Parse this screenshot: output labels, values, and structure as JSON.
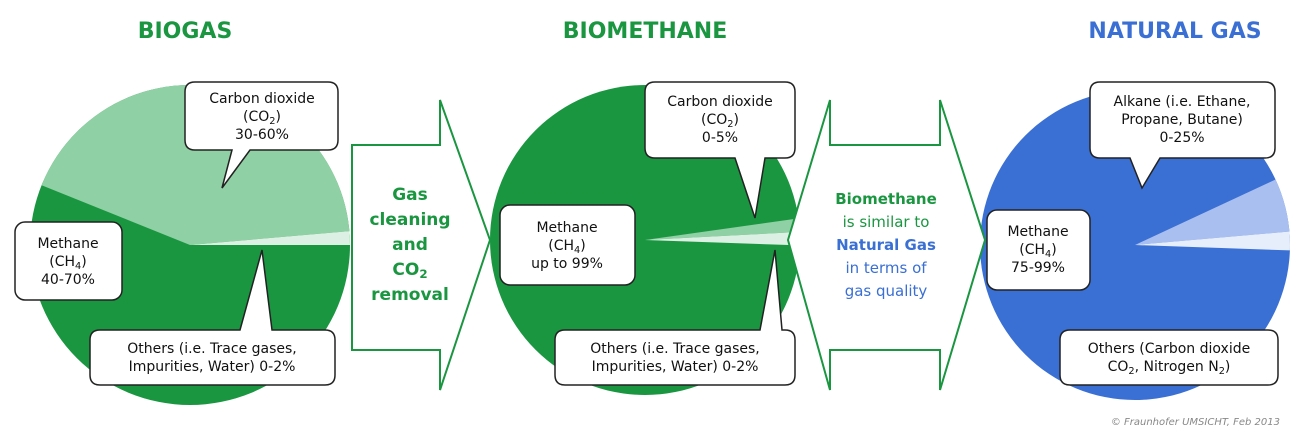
{
  "sections": [
    {
      "title": "BIOGAS",
      "callouts": [
        {
          "lines": [
            [
              "Carbon dioxide"
            ],
            [
              "(CO",
              "2",
              ")"
            ],
            [
              "30-60%"
            ]
          ]
        },
        {
          "lines": [
            [
              "Methane"
            ],
            [
              "(CH",
              "4",
              ")"
            ],
            [
              "40-70%"
            ]
          ]
        },
        {
          "lines": [
            [
              "Others (i.e. Trace gases,"
            ],
            [
              "Impurities, Water) 0-2%"
            ]
          ]
        }
      ]
    },
    {
      "title": "BIOMETHANE",
      "callouts": [
        {
          "lines": [
            [
              "Carbon dioxide"
            ],
            [
              "(CO",
              "2",
              ")"
            ],
            [
              "0-5%"
            ]
          ]
        },
        {
          "lines": [
            [
              "Methane"
            ],
            [
              "(CH",
              "4",
              ")"
            ],
            [
              "up to 99%"
            ]
          ]
        },
        {
          "lines": [
            [
              "Others (i.e. Trace gases,"
            ],
            [
              "Impurities, Water) 0-2%"
            ]
          ]
        }
      ]
    },
    {
      "title": "NATURAL GAS",
      "callouts": [
        {
          "lines": [
            [
              "Alkane (i.e. Ethane,"
            ],
            [
              "Propane, Butane)"
            ],
            [
              "0-25%"
            ]
          ]
        },
        {
          "lines": [
            [
              "Methane"
            ],
            [
              "(CH",
              "4",
              ")"
            ],
            [
              "75-99%"
            ]
          ]
        },
        {
          "lines": [
            [
              "Others (Carbon dioxide"
            ],
            [
              "CO",
              "2",
              ", Nitrogen N",
              "2",
              ")"
            ]
          ]
        }
      ]
    }
  ],
  "arrows": [
    {
      "lines": [
        {
          "segments": [
            "Gas"
          ],
          "color": "#1a9641",
          "bold": true
        },
        {
          "segments": [
            "cleaning"
          ],
          "color": "#1a9641",
          "bold": true
        },
        {
          "segments": [
            "and"
          ],
          "color": "#1a9641",
          "bold": true
        },
        {
          "segments": [
            "CO",
            "2"
          ],
          "color": "#1a9641",
          "bold": true
        },
        {
          "segments": [
            "removal"
          ],
          "color": "#1a9641",
          "bold": true
        }
      ]
    },
    {
      "lines": [
        {
          "segments": [
            "Biomethane"
          ],
          "color": "#1a9641",
          "bold": true
        },
        {
          "segments": [
            "is similar to"
          ],
          "color": "#1a9641",
          "bold": false
        },
        {
          "segments": [
            "Natural Gas"
          ],
          "color": "#3a6fd4",
          "bold": true
        },
        {
          "segments": [
            "in terms of"
          ],
          "color": "#3a6fd4",
          "bold": false
        },
        {
          "segments": [
            "gas quality"
          ],
          "color": "#3a6fd4",
          "bold": false
        }
      ]
    }
  ],
  "credit": "© Fraunhofer UMSICHT, Feb 2013"
}
